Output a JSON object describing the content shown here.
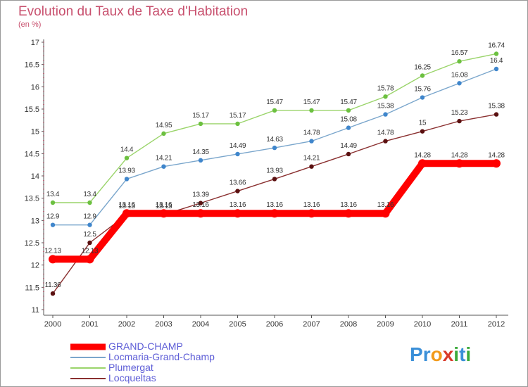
{
  "header": {
    "title": "Evolution du Taux de Taxe d'Habitation",
    "unit": "(en %)"
  },
  "chart_data": {
    "type": "line",
    "title": "Evolution du Taux de Taxe d'Habitation",
    "ylabel": "(en %)",
    "xlabel": "",
    "x": [
      "2000",
      "2001",
      "2002",
      "2003",
      "2004",
      "2005",
      "2006",
      "2007",
      "2008",
      "2009",
      "2010",
      "2011",
      "2012"
    ],
    "ylim": [
      11,
      17
    ],
    "yticks": [
      "11",
      "11.5",
      "12",
      "12.5",
      "13",
      "13.5",
      "14",
      "14.5",
      "15",
      "15.5",
      "16",
      "16.5",
      "17"
    ],
    "grid": false,
    "legend_position": "bottom-left",
    "series": [
      {
        "name": "GRAND-CHAMP",
        "color": "#ff0000",
        "marker_color": "#ff0000",
        "values": [
          12.13,
          12.13,
          13.16,
          13.16,
          13.16,
          13.16,
          13.16,
          13.16,
          13.16,
          13.16,
          14.28,
          14.28,
          14.28
        ],
        "labels": [
          "12.13",
          "12.13",
          "13.16",
          "13.16",
          "13.16",
          "13.16",
          "13.16",
          "13.16",
          "13.16",
          "13.16",
          "14.28",
          "14.28",
          "14.28"
        ]
      },
      {
        "name": "Locmaria-Grand-Champ",
        "color": "#7aa6cc",
        "marker_color": "#3f86cc",
        "values": [
          12.9,
          12.9,
          13.93,
          14.21,
          14.35,
          14.49,
          14.63,
          14.78,
          15.08,
          15.38,
          15.76,
          16.08,
          16.4
        ],
        "labels": [
          "12.9",
          "12.9",
          "13.93",
          "14.21",
          "14.35",
          "14.49",
          "14.63",
          "14.78",
          "15.08",
          "15.38",
          "15.76",
          "16.08",
          "16.4"
        ]
      },
      {
        "name": "Plumergat",
        "color": "#9ad46a",
        "marker_color": "#6cc040",
        "values": [
          13.4,
          13.4,
          14.4,
          14.95,
          15.17,
          15.17,
          15.47,
          15.47,
          15.47,
          15.78,
          16.25,
          16.57,
          16.74
        ],
        "labels": [
          "13.4",
          "13.4",
          "14.4",
          "14.95",
          "15.17",
          "15.17",
          "15.47",
          "15.47",
          "15.47",
          "15.78",
          "16.25",
          "16.57",
          "16.74"
        ]
      },
      {
        "name": "Locqueltas",
        "color": "#8a3030",
        "marker_color": "#5a1010",
        "values": [
          11.36,
          12.5,
          13.13,
          13.13,
          13.39,
          13.66,
          13.93,
          14.21,
          14.49,
          14.78,
          15.0,
          15.23,
          15.38
        ],
        "labels": [
          "11.36",
          "12.5",
          "13.13",
          "13.13",
          "13.39",
          "13.66",
          "13.93",
          "14.21",
          "14.49",
          "14.78",
          "15",
          "15.23",
          "15.38"
        ]
      }
    ]
  },
  "legend": {
    "items": [
      {
        "label": "GRAND-CHAMP",
        "color": "#ff0000"
      },
      {
        "label": "Locmaria-Grand-Champ",
        "color": "#7aa6cc"
      },
      {
        "label": "Plumergat",
        "color": "#9ad46a"
      },
      {
        "label": "Locqueltas",
        "color": "#8a3030"
      }
    ]
  },
  "logo": {
    "letters": [
      "P",
      "r",
      "o",
      "x",
      "i",
      "t",
      "i"
    ],
    "colors": [
      "#3a8fd8",
      "#3a8fd8",
      "#f29a1a",
      "#d93a2a",
      "#3aaa3a",
      "#3a8fd8",
      "#3aaa3a"
    ]
  }
}
